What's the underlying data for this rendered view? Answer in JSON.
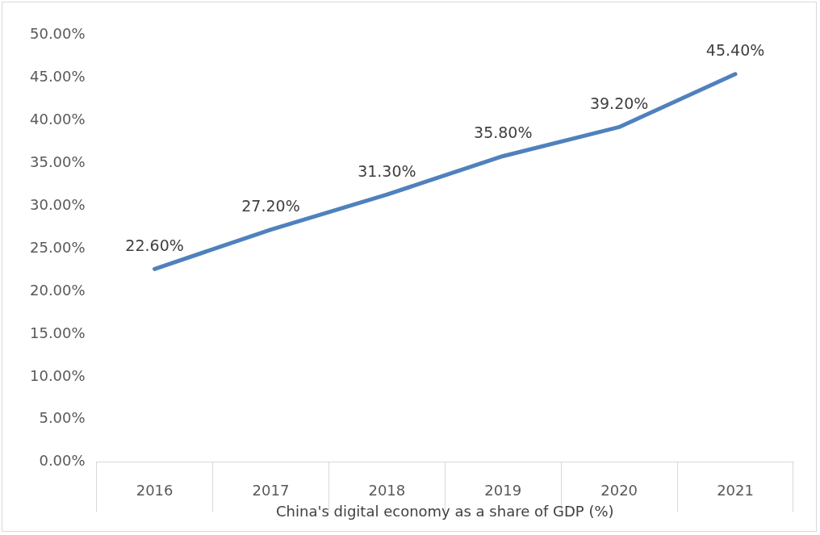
{
  "chart_data": {
    "type": "line",
    "xlabel": "China's digital economy as a share of GDP (%)",
    "categories": [
      "2016",
      "2017",
      "2018",
      "2019",
      "2020",
      "2021"
    ],
    "series": [
      {
        "color": "#4f81bd",
        "values": [
          22.6,
          27.2,
          31.3,
          35.8,
          39.2,
          45.4
        ],
        "value_labels": [
          "22.60%",
          "27.20%",
          "31.30%",
          "35.80%",
          "39.20%",
          "45.40%"
        ]
      }
    ],
    "ylim": [
      0,
      50
    ],
    "yticks": [
      {
        "value": 0,
        "label": "0.00%"
      },
      {
        "value": 5,
        "label": "5.00%"
      },
      {
        "value": 10,
        "label": "10.00%"
      },
      {
        "value": 15,
        "label": "15.00%"
      },
      {
        "value": 20,
        "label": "20.00%"
      },
      {
        "value": 25,
        "label": "25.00%"
      },
      {
        "value": 30,
        "label": "30.00%"
      },
      {
        "value": 35,
        "label": "35.00%"
      },
      {
        "value": 40,
        "label": "40.00%"
      },
      {
        "value": 45,
        "label": "45.00%"
      },
      {
        "value": 50,
        "label": "50.00%"
      }
    ],
    "grid": false,
    "legend": false,
    "marker": "none",
    "line_style": "solid"
  }
}
